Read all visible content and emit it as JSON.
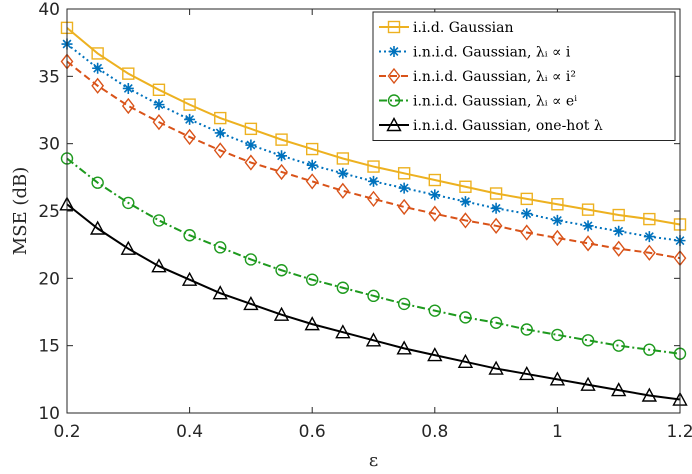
{
  "chart_data": {
    "type": "line",
    "xlabel": "ε",
    "ylabel": "MSE (dB)",
    "xlim": [
      0.2,
      1.2
    ],
    "ylim": [
      10,
      40
    ],
    "xticks": [
      "0.2",
      "0.4",
      "0.6",
      "0.8",
      "1",
      "1.2"
    ],
    "yticks": [
      "10",
      "15",
      "20",
      "25",
      "30",
      "35",
      "40"
    ],
    "grid": false,
    "legend_position": "top-right",
    "x": [
      0.2,
      0.25,
      0.3,
      0.35,
      0.4,
      0.45,
      0.5,
      0.55,
      0.6,
      0.65,
      0.7,
      0.75,
      0.8,
      0.85,
      0.9,
      0.95,
      1.0,
      1.05,
      1.1,
      1.15,
      1.2
    ],
    "series": [
      {
        "name": "i.i.d. Gaussian",
        "color": "#EDB120",
        "marker": "square",
        "linestyle": "solid",
        "values": [
          38.6,
          36.7,
          35.2,
          34.0,
          32.9,
          31.9,
          31.1,
          30.3,
          29.6,
          28.9,
          28.3,
          27.8,
          27.3,
          26.8,
          26.3,
          25.9,
          25.5,
          25.1,
          24.7,
          24.4,
          24.0
        ]
      },
      {
        "name": "i.n.i.d. Gaussian, λᵢ ∝ i",
        "color": "#0072BD",
        "marker": "asterisk",
        "linestyle": "dotted",
        "values": [
          37.4,
          35.6,
          34.1,
          32.9,
          31.8,
          30.8,
          29.9,
          29.1,
          28.4,
          27.8,
          27.2,
          26.7,
          26.2,
          25.7,
          25.2,
          24.8,
          24.3,
          23.9,
          23.5,
          23.1,
          22.8
        ]
      },
      {
        "name": "i.n.i.d. Gaussian, λᵢ ∝ i²",
        "color": "#D95319",
        "marker": "diamond",
        "linestyle": "dashed",
        "values": [
          36.1,
          34.3,
          32.8,
          31.6,
          30.5,
          29.5,
          28.6,
          27.9,
          27.2,
          26.5,
          25.9,
          25.3,
          24.8,
          24.3,
          23.9,
          23.4,
          23.0,
          22.6,
          22.2,
          21.9,
          21.5
        ]
      },
      {
        "name": "i.n.i.d. Gaussian, λᵢ ∝ eⁱ",
        "color": "#1E9A1E",
        "marker": "circle",
        "linestyle": "dashdot",
        "values": [
          28.9,
          27.1,
          25.6,
          24.3,
          23.2,
          22.3,
          21.4,
          20.6,
          19.9,
          19.3,
          18.7,
          18.1,
          17.6,
          17.1,
          16.7,
          16.2,
          15.8,
          15.4,
          15.0,
          14.7,
          14.4
        ]
      },
      {
        "name": "i.n.i.d. Gaussian, one-hot λ",
        "color": "#000000",
        "marker": "triangle",
        "linestyle": "solid",
        "values": [
          25.5,
          23.7,
          22.2,
          20.9,
          19.9,
          18.9,
          18.1,
          17.3,
          16.6,
          16.0,
          15.4,
          14.8,
          14.3,
          13.8,
          13.3,
          12.9,
          12.5,
          12.1,
          11.7,
          11.3,
          11.0
        ]
      }
    ]
  }
}
